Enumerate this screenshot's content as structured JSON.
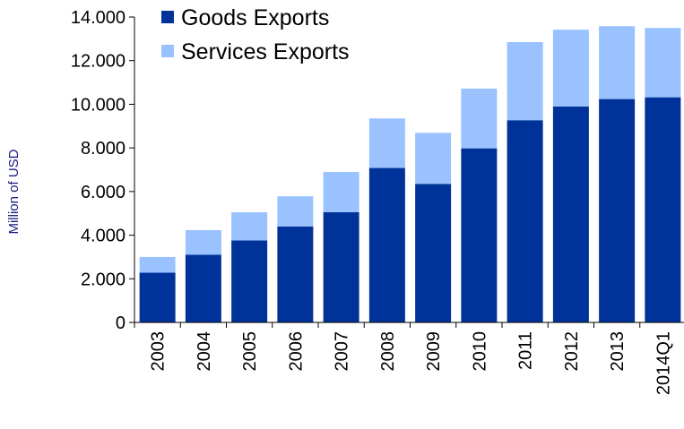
{
  "chart_data": {
    "type": "bar",
    "stacked": true,
    "categories": [
      "2003",
      "2004",
      "2005",
      "2006",
      "2007",
      "2008",
      "2009",
      "2010",
      "2011",
      "2012",
      "2013",
      "2014Q1"
    ],
    "series": [
      {
        "name": "Goods Exports",
        "color": "#003399",
        "values": [
          2280,
          3100,
          3760,
          4400,
          5050,
          7080,
          6350,
          7980,
          9270,
          9900,
          10240,
          10320
        ]
      },
      {
        "name": "Services Exports",
        "color": "#99C2FF",
        "values": [
          720,
          1130,
          1290,
          1380,
          1850,
          2270,
          2340,
          2740,
          3580,
          3520,
          3340,
          3180
        ]
      }
    ],
    "ylabel": "Million of USD",
    "ylim": [
      0,
      14000
    ],
    "yticks": [
      0,
      2000,
      4000,
      6000,
      8000,
      10000,
      12000,
      14000
    ],
    "ytick_labels": [
      "0",
      "2.000",
      "4.000",
      "6.000",
      "8.000",
      "10.000",
      "12.000",
      "14.000"
    ],
    "legend": "top-left",
    "grid": false
  }
}
